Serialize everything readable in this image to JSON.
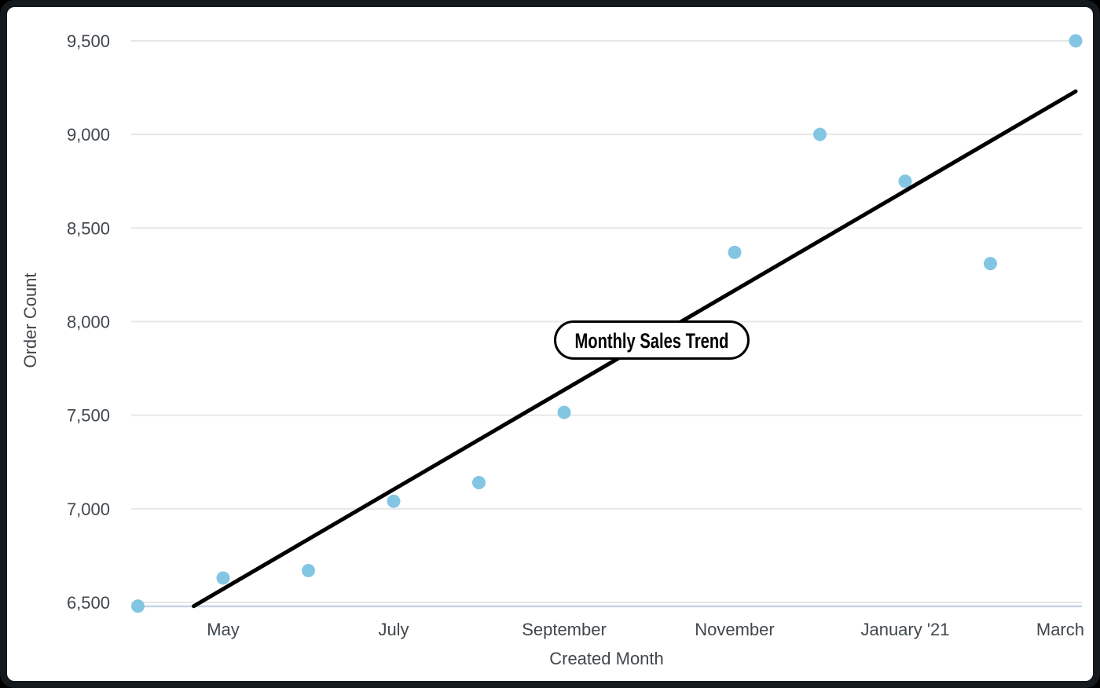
{
  "chart_data": {
    "type": "scatter",
    "title": "Monthly Sales Trend",
    "xlabel": "Created Month",
    "ylabel": "Order Count",
    "ylim": [
      6500,
      9500
    ],
    "grid": true,
    "legend": false,
    "y_ticks": [
      {
        "value": 6500,
        "label": "6,500"
      },
      {
        "value": 7000,
        "label": "7,000"
      },
      {
        "value": 7500,
        "label": "7,500"
      },
      {
        "value": 8000,
        "label": "8,000"
      },
      {
        "value": 8500,
        "label": "8,500"
      },
      {
        "value": 9000,
        "label": "9,000"
      },
      {
        "value": 9500,
        "label": "9,500"
      }
    ],
    "x_ticks": [
      {
        "month_index": 1,
        "label": "May"
      },
      {
        "month_index": 3,
        "label": "July"
      },
      {
        "month_index": 5,
        "label": "September"
      },
      {
        "month_index": 7,
        "label": "November"
      },
      {
        "month_index": 9,
        "label": "January '21"
      },
      {
        "month_index": 11,
        "label": "March"
      }
    ],
    "points": [
      {
        "month": "April",
        "month_index": 0,
        "value": 6480
      },
      {
        "month": "May",
        "month_index": 1,
        "value": 6630
      },
      {
        "month": "June",
        "month_index": 2,
        "value": 6670
      },
      {
        "month": "July",
        "month_index": 3,
        "value": 7040
      },
      {
        "month": "August",
        "month_index": 4,
        "value": 7140
      },
      {
        "month": "September",
        "month_index": 5,
        "value": 7515
      },
      {
        "month": "November",
        "month_index": 7,
        "value": 8370
      },
      {
        "month": "December",
        "month_index": 8,
        "value": 9000
      },
      {
        "month": "January '21",
        "month_index": 9,
        "value": 8750
      },
      {
        "month": "February",
        "month_index": 10,
        "value": 8310
      },
      {
        "month": "March",
        "month_index": 11,
        "value": 9500
      }
    ],
    "trend_line": {
      "label": "Monthly Sales Trend",
      "start": {
        "month_index": 0.655,
        "value": 6480
      },
      "end": {
        "month_index": 11.0,
        "value": 9230
      }
    }
  },
  "colors": {
    "point": "#83C6E4",
    "trend_line": "#000000",
    "gridline": "#e7e7e7",
    "axis_line": "#c7d3e2",
    "text": "#40474d",
    "frame_border": "#13191c",
    "background": "#ffffff"
  }
}
